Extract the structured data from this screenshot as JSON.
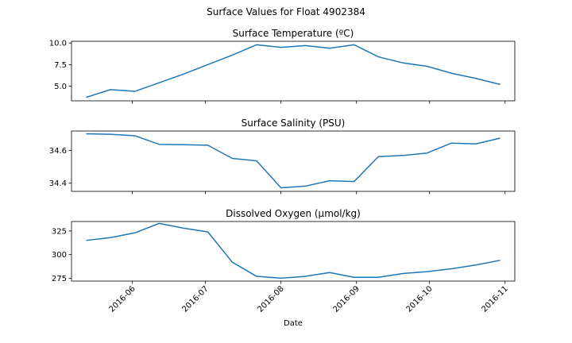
{
  "chart_data": {
    "type": "line",
    "title": "Surface Values for Float 4902384",
    "xlabel": "Date",
    "x_ticks": [
      "2016-06",
      "2016-07",
      "2016-08",
      "2016-09",
      "2016-10",
      "2016-11"
    ],
    "x": [
      "2016-05-13",
      "2016-05-23",
      "2016-06-02",
      "2016-06-12",
      "2016-06-22",
      "2016-07-02",
      "2016-07-12",
      "2016-07-22",
      "2016-08-01",
      "2016-08-11",
      "2016-08-21",
      "2016-08-31",
      "2016-09-10",
      "2016-09-20",
      "2016-09-30",
      "2016-10-10",
      "2016-10-20",
      "2016-10-30"
    ],
    "xlim": [
      "2016-05-07",
      "2016-11-05"
    ],
    "panels": [
      {
        "title": "Surface Temperature (ºC)",
        "ylim": [
          3.3,
          10.2
        ],
        "y_ticks": [
          5.0,
          7.5,
          10.0
        ],
        "tick_format": "0.0",
        "values": [
          3.7,
          4.6,
          4.4,
          5.4,
          6.4,
          7.5,
          8.6,
          9.8,
          9.5,
          9.7,
          9.4,
          9.8,
          8.4,
          7.7,
          7.3,
          6.5,
          5.9,
          5.2
        ]
      },
      {
        "title": "Surface Salinity (PSU)",
        "ylim": [
          34.35,
          34.72
        ],
        "y_ticks": [
          34.4,
          34.6
        ],
        "tick_format": "0.0",
        "values": [
          34.703,
          34.7,
          34.691,
          34.638,
          34.636,
          34.633,
          34.552,
          34.537,
          34.372,
          34.382,
          34.415,
          34.41,
          34.563,
          34.57,
          34.585,
          34.646,
          34.641,
          34.676
        ]
      },
      {
        "title": "Dissolved Oxygen (µmol/kg)",
        "ylim": [
          272,
          335
        ],
        "y_ticks": [
          275,
          300,
          325
        ],
        "tick_format": "0",
        "values": [
          315,
          318,
          323,
          333,
          328,
          324,
          292,
          277,
          275,
          277,
          281,
          276,
          276,
          280,
          282,
          285,
          289,
          294
        ]
      }
    ]
  }
}
